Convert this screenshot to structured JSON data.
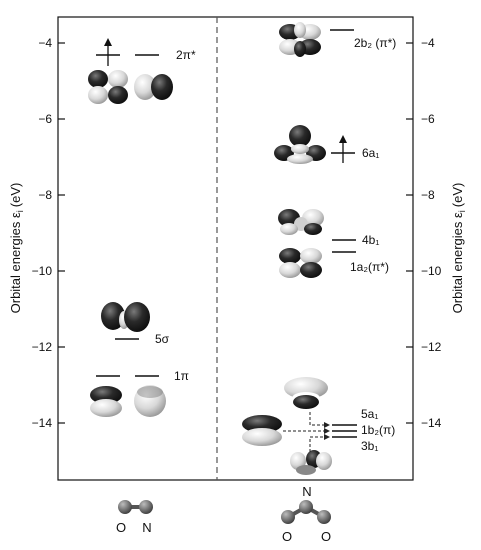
{
  "y_axis": {
    "title": "Orbital energies ε",
    "title_subscript": "i",
    "title_unit": "(eV)",
    "range": [
      -15.5,
      -3.4
    ],
    "ticks": [
      -4,
      -6,
      -8,
      -10,
      -12,
      -14
    ]
  },
  "no_molecule": {
    "levels": [
      {
        "id": "2pi_star",
        "label": "2π*",
        "energy": -4.3,
        "occupancy": "one-electron"
      },
      {
        "id": "5sigma",
        "label": "5σ",
        "energy": -11.8,
        "occupancy": "empty-marker"
      },
      {
        "id": "1pi",
        "label": "1π",
        "energy": -12.8,
        "occupancy": "empty-marker"
      }
    ],
    "atoms": [
      "O",
      "N"
    ]
  },
  "no2_molecule": {
    "levels": [
      {
        "id": "2b2",
        "label": "2b₂ (π*)",
        "energy": -3.65
      },
      {
        "id": "6a1",
        "label": "6a₁",
        "energy": -6.85,
        "occupancy": "one-electron"
      },
      {
        "id": "4b1",
        "label": "4b₁",
        "energy": -9.2
      },
      {
        "id": "1a2",
        "label": "1a₂(π*)",
        "energy": -9.55
      },
      {
        "id": "5a1",
        "label": "5a₁",
        "energy": -14.05
      },
      {
        "id": "1b2",
        "label": "1b₂(π)",
        "energy": -14.25
      },
      {
        "id": "3b1",
        "label": "3b₁",
        "energy": -14.45
      }
    ],
    "atoms": [
      "N",
      "O",
      "O"
    ]
  }
}
